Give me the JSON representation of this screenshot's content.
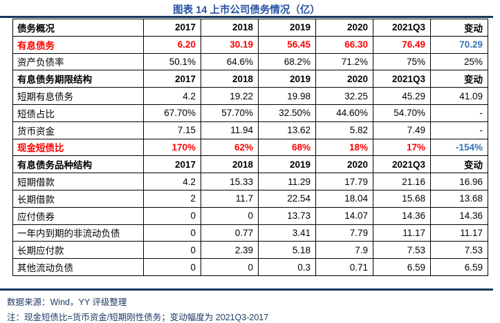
{
  "title": "图表 14 上市公司债务情况（亿）",
  "colors": {
    "title_blue": "#2853A4",
    "rule_navy": "#17365D",
    "highlight_red": "#FF0000",
    "change_blue": "#2E74B5",
    "footer_navy": "#1F3864"
  },
  "chart_data": {
    "type": "table",
    "title": "图表 14 上市公司债务情况（亿）",
    "columns": [
      "债务概况",
      "2017",
      "2018",
      "2019",
      "2020",
      "2021Q3",
      "变动"
    ],
    "rows": [
      {
        "type": "header",
        "cells": [
          "债务概况",
          "2017",
          "2018",
          "2019",
          "2020",
          "2021Q3",
          "变动"
        ]
      },
      {
        "type": "highlight",
        "cells": [
          "有息债务",
          "6.20",
          "30.19",
          "56.45",
          "66.30",
          "76.49",
          "70.29"
        ]
      },
      {
        "type": "normal",
        "cells": [
          "资产负债率",
          "50.1%",
          "64.6%",
          "68.2%",
          "71.2%",
          "75%",
          "25%"
        ]
      },
      {
        "type": "section",
        "cells": [
          "有息债务期限结构",
          "2017",
          "2018",
          "2019",
          "2020",
          "2021Q3",
          "变动"
        ]
      },
      {
        "type": "normal",
        "cells": [
          "短期有息债务",
          "4.2",
          "19.22",
          "19.98",
          "32.25",
          "45.29",
          "41.09"
        ]
      },
      {
        "type": "normal",
        "cells": [
          "短债占比",
          "67.70%",
          "57.70%",
          "32.50%",
          "44.60%",
          "54.70%",
          "-"
        ]
      },
      {
        "type": "normal",
        "cells": [
          "货币资金",
          "7.15",
          "11.94",
          "13.62",
          "5.82",
          "7.49",
          "-"
        ]
      },
      {
        "type": "highlight",
        "cells": [
          "现金短债比",
          "170%",
          "62%",
          "68%",
          "18%",
          "17%",
          "-154%"
        ]
      },
      {
        "type": "section",
        "cells": [
          "有息债务品种结构",
          "2017",
          "2018",
          "2019",
          "2020",
          "2021Q3",
          "变动"
        ]
      },
      {
        "type": "normal",
        "cells": [
          "短期借款",
          "4.2",
          "15.33",
          "11.29",
          "17.79",
          "21.16",
          "16.96"
        ]
      },
      {
        "type": "normal",
        "cells": [
          "长期借款",
          "2",
          "11.7",
          "22.54",
          "18.04",
          "15.68",
          "13.68"
        ]
      },
      {
        "type": "normal",
        "cells": [
          "应付债券",
          "0",
          "0",
          "13.73",
          "14.07",
          "14.36",
          "14.36"
        ]
      },
      {
        "type": "normal",
        "cells": [
          "一年内到期的非流动负债",
          "0",
          "0.77",
          "3.41",
          "7.79",
          "11.17",
          "11.17"
        ]
      },
      {
        "type": "normal",
        "cells": [
          "长期应付款",
          "0",
          "2.39",
          "5.18",
          "7.9",
          "7.53",
          "7.53"
        ]
      },
      {
        "type": "normal",
        "cells": [
          "其他流动负债",
          "0",
          "0",
          "0.3",
          "0.71",
          "6.59",
          "6.59"
        ]
      }
    ]
  },
  "footer": {
    "source": "数据来源：Wind，YY 评级整理",
    "note": "注：现金短债比=货币资金/短期刚性债务；变动幅度为 2021Q3-2017"
  }
}
